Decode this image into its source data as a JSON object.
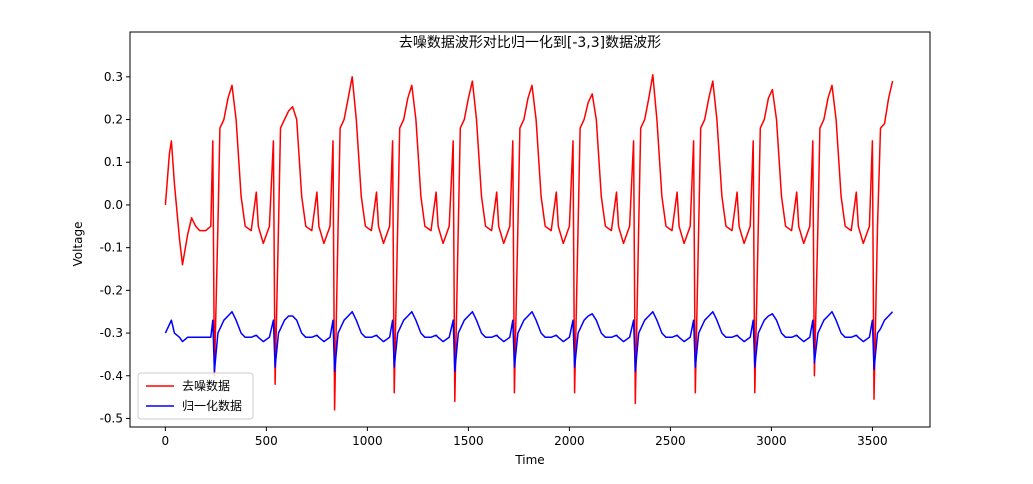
{
  "chart_data": {
    "type": "line",
    "title": "去噪数据波形对比归一化到[-3,3]数据波形",
    "x_label": "Time",
    "y_label": "Voltage",
    "x": [
      0,
      10,
      20,
      30,
      45,
      70,
      85,
      110,
      130,
      150,
      170,
      200,
      225,
      235,
      243,
      260,
      270,
      290,
      310,
      330,
      350,
      375,
      395,
      425,
      450,
      460,
      485,
      515,
      535,
      543,
      560,
      570,
      590,
      610,
      630,
      650,
      675,
      695,
      725,
      750,
      760,
      785,
      815,
      830,
      838,
      855,
      865,
      885,
      905,
      925,
      945,
      970,
      990,
      1020,
      1045,
      1055,
      1080,
      1110,
      1125,
      1133,
      1150,
      1160,
      1180,
      1200,
      1220,
      1240,
      1265,
      1285,
      1315,
      1340,
      1350,
      1375,
      1405,
      1425,
      1433,
      1450,
      1460,
      1480,
      1500,
      1520,
      1540,
      1565,
      1585,
      1615,
      1640,
      1650,
      1675,
      1705,
      1720,
      1728,
      1745,
      1755,
      1775,
      1795,
      1815,
      1835,
      1860,
      1880,
      1910,
      1935,
      1945,
      1970,
      2000,
      2018,
      2026,
      2043,
      2053,
      2073,
      2093,
      2113,
      2133,
      2158,
      2178,
      2208,
      2233,
      2243,
      2268,
      2298,
      2318,
      2326,
      2343,
      2353,
      2373,
      2393,
      2413,
      2433,
      2458,
      2478,
      2508,
      2533,
      2543,
      2568,
      2598,
      2615,
      2623,
      2640,
      2650,
      2670,
      2690,
      2710,
      2730,
      2755,
      2775,
      2805,
      2830,
      2840,
      2865,
      2895,
      2910,
      2918,
      2935,
      2945,
      2965,
      2985,
      3005,
      3025,
      3050,
      3070,
      3100,
      3125,
      3135,
      3160,
      3190,
      3205,
      3213,
      3230,
      3240,
      3260,
      3280,
      3300,
      3320,
      3345,
      3365,
      3395,
      3420,
      3430,
      3455,
      3485,
      3500,
      3508,
      3525,
      3540,
      3560,
      3580,
      3600
    ],
    "series": [
      {
        "name": "去噪数据",
        "color": "#ff0000",
        "values": [
          0,
          0.06,
          0.12,
          0.15,
          0.05,
          -0.08,
          -0.14,
          -0.07,
          -0.03,
          -0.05,
          -0.06,
          -0.06,
          -0.05,
          0.15,
          -0.4,
          -0.05,
          0.18,
          0.2,
          0.25,
          0.28,
          0.2,
          0.02,
          -0.05,
          -0.06,
          0.03,
          -0.05,
          -0.09,
          -0.05,
          0.15,
          -0.42,
          -0.05,
          0.18,
          0.2,
          0.22,
          0.23,
          0.2,
          0.02,
          -0.05,
          -0.06,
          0.03,
          -0.05,
          -0.09,
          -0.05,
          0.15,
          -0.48,
          -0.05,
          0.18,
          0.2,
          0.25,
          0.3,
          0.2,
          0.02,
          -0.05,
          -0.06,
          0.03,
          -0.05,
          -0.09,
          -0.05,
          0.15,
          -0.44,
          -0.05,
          0.18,
          0.2,
          0.25,
          0.28,
          0.2,
          0.02,
          -0.05,
          -0.06,
          0.03,
          -0.05,
          -0.09,
          -0.05,
          0.15,
          -0.46,
          -0.05,
          0.18,
          0.2,
          0.25,
          0.29,
          0.2,
          0.02,
          -0.05,
          -0.06,
          0.03,
          -0.05,
          -0.09,
          -0.05,
          0.15,
          -0.44,
          -0.05,
          0.18,
          0.2,
          0.25,
          0.28,
          0.2,
          0.02,
          -0.05,
          -0.06,
          0.03,
          -0.05,
          -0.09,
          -0.05,
          0.15,
          -0.44,
          -0.05,
          0.18,
          0.2,
          0.24,
          0.26,
          0.2,
          0.02,
          -0.05,
          -0.06,
          0.03,
          -0.05,
          -0.09,
          -0.05,
          0.15,
          -0.465,
          -0.05,
          0.18,
          0.2,
          0.25,
          0.305,
          0.2,
          0.02,
          -0.05,
          -0.06,
          0.03,
          -0.05,
          -0.09,
          -0.05,
          0.15,
          -0.44,
          -0.05,
          0.18,
          0.2,
          0.25,
          0.29,
          0.2,
          0.02,
          -0.05,
          -0.06,
          0.03,
          -0.05,
          -0.09,
          -0.05,
          0.15,
          -0.44,
          -0.05,
          0.18,
          0.2,
          0.25,
          0.27,
          0.2,
          0.02,
          -0.05,
          -0.06,
          0.03,
          -0.05,
          -0.09,
          -0.05,
          0.15,
          -0.4,
          -0.05,
          0.18,
          0.2,
          0.25,
          0.28,
          0.2,
          0.02,
          -0.05,
          -0.06,
          0.03,
          -0.05,
          -0.09,
          -0.05,
          0.15,
          -0.455,
          -0.05,
          0.18,
          0.19,
          0.25,
          0.29
        ]
      },
      {
        "name": "归一化数据",
        "color": "#0000ff",
        "values": [
          -0.3,
          -0.29,
          -0.28,
          -0.27,
          -0.3,
          -0.31,
          -0.32,
          -0.31,
          -0.31,
          -0.31,
          -0.31,
          -0.31,
          -0.31,
          -0.27,
          -0.39,
          -0.3,
          -0.29,
          -0.27,
          -0.26,
          -0.25,
          -0.27,
          -0.3,
          -0.31,
          -0.31,
          -0.305,
          -0.31,
          -0.32,
          -0.31,
          -0.27,
          -0.38,
          -0.3,
          -0.29,
          -0.27,
          -0.26,
          -0.26,
          -0.27,
          -0.3,
          -0.31,
          -0.31,
          -0.305,
          -0.31,
          -0.32,
          -0.31,
          -0.27,
          -0.39,
          -0.3,
          -0.29,
          -0.27,
          -0.26,
          -0.25,
          -0.27,
          -0.3,
          -0.31,
          -0.31,
          -0.305,
          -0.31,
          -0.32,
          -0.31,
          -0.27,
          -0.38,
          -0.3,
          -0.29,
          -0.27,
          -0.26,
          -0.25,
          -0.27,
          -0.3,
          -0.31,
          -0.31,
          -0.305,
          -0.31,
          -0.32,
          -0.31,
          -0.27,
          -0.39,
          -0.3,
          -0.29,
          -0.27,
          -0.26,
          -0.25,
          -0.27,
          -0.3,
          -0.31,
          -0.31,
          -0.305,
          -0.31,
          -0.32,
          -0.31,
          -0.27,
          -0.38,
          -0.3,
          -0.29,
          -0.27,
          -0.26,
          -0.25,
          -0.27,
          -0.3,
          -0.31,
          -0.31,
          -0.305,
          -0.31,
          -0.32,
          -0.31,
          -0.27,
          -0.38,
          -0.3,
          -0.29,
          -0.27,
          -0.26,
          -0.255,
          -0.27,
          -0.3,
          -0.31,
          -0.31,
          -0.305,
          -0.31,
          -0.32,
          -0.31,
          -0.27,
          -0.39,
          -0.3,
          -0.29,
          -0.27,
          -0.26,
          -0.25,
          -0.27,
          -0.3,
          -0.31,
          -0.31,
          -0.305,
          -0.31,
          -0.32,
          -0.31,
          -0.27,
          -0.38,
          -0.3,
          -0.29,
          -0.27,
          -0.26,
          -0.25,
          -0.27,
          -0.3,
          -0.31,
          -0.31,
          -0.305,
          -0.31,
          -0.32,
          -0.31,
          -0.27,
          -0.38,
          -0.3,
          -0.29,
          -0.27,
          -0.26,
          -0.255,
          -0.27,
          -0.3,
          -0.31,
          -0.31,
          -0.305,
          -0.31,
          -0.32,
          -0.31,
          -0.27,
          -0.37,
          -0.3,
          -0.29,
          -0.27,
          -0.26,
          -0.25,
          -0.27,
          -0.3,
          -0.31,
          -0.31,
          -0.305,
          -0.31,
          -0.32,
          -0.31,
          -0.27,
          -0.385,
          -0.3,
          -0.29,
          -0.27,
          -0.26,
          -0.25
        ]
      }
    ],
    "xlim": [
      -175,
      3785
    ],
    "xticks": [
      0,
      500,
      1000,
      1500,
      2000,
      2500,
      3000,
      3500
    ],
    "ylim": [
      -0.52,
      0.405
    ],
    "yticks": [
      -0.5,
      -0.4,
      -0.3,
      -0.2,
      -0.1,
      {
        "value": 0,
        "label": "0.0"
      },
      0.1,
      0.2,
      0.3
    ],
    "legend": "lower left"
  }
}
